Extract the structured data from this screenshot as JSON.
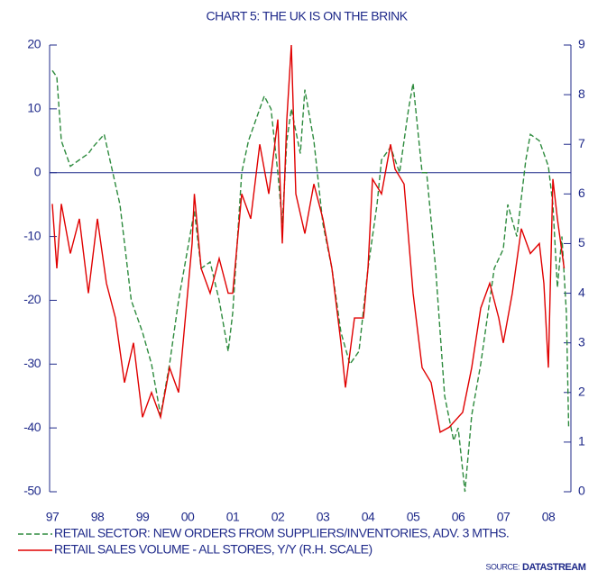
{
  "chart_data": {
    "type": "line",
    "title": "CHART 5: THE UK IS ON THE BRINK",
    "source_label": "SOURCE:",
    "source": "DATASTREAM",
    "xlim": [
      1996.94,
      2008.5
    ],
    "xticks": [
      {
        "value": 1997,
        "label": "97"
      },
      {
        "value": 1998,
        "label": "98"
      },
      {
        "value": 1999,
        "label": "99"
      },
      {
        "value": 2000,
        "label": "00"
      },
      {
        "value": 2001,
        "label": "01"
      },
      {
        "value": 2002,
        "label": "02"
      },
      {
        "value": 2003,
        "label": "03"
      },
      {
        "value": 2004,
        "label": "04"
      },
      {
        "value": 2005,
        "label": "05"
      },
      {
        "value": 2006,
        "label": "06"
      },
      {
        "value": 2007,
        "label": "07"
      },
      {
        "value": 2008,
        "label": "08"
      }
    ],
    "ylim": [
      -50,
      20
    ],
    "yticks": [
      -50,
      -40,
      -30,
      -20,
      -10,
      0,
      10,
      20
    ],
    "y2lim": [
      0,
      9
    ],
    "y2ticks": [
      0,
      1,
      2,
      3,
      4,
      5,
      6,
      7,
      8,
      9
    ],
    "zero_line": 0,
    "series": [
      {
        "name": "RETAIL SECTOR: NEW ORDERS FROM SUPPLIERS/INVENTORIES, ADV. 3 MTHS.",
        "color": "#2e8b3e",
        "dashed": true,
        "x": [
          1997.0,
          1997.1,
          1997.2,
          1997.4,
          1997.6,
          1997.8,
          1997.9,
          1998.15,
          1998.5,
          1998.75,
          1999.0,
          1999.2,
          1999.4,
          1999.6,
          1999.8,
          2000.0,
          2000.15,
          2000.3,
          2000.5,
          2000.7,
          2000.9,
          2001.0,
          2001.2,
          2001.35,
          2001.5,
          2001.7,
          2001.85,
          2002.0,
          2002.1,
          2002.2,
          2002.3,
          2002.5,
          2002.6,
          2002.8,
          2003.0,
          2003.2,
          2003.4,
          2003.6,
          2003.8,
          2004.0,
          2004.2,
          2004.3,
          2004.5,
          2004.7,
          2004.9,
          2005.0,
          2005.2,
          2005.3,
          2005.5,
          2005.7,
          2005.9,
          2006.0,
          2006.15,
          2006.3,
          2006.5,
          2006.6,
          2006.8,
          2007.0,
          2007.1,
          2007.3,
          2007.5,
          2007.6,
          2007.8,
          2008.0,
          2008.1,
          2008.2,
          2008.3,
          2008.4,
          2008.45
        ],
        "values": [
          16,
          15,
          5,
          1,
          2,
          3,
          4,
          6,
          -5,
          -20,
          -25,
          -30,
          -38,
          -30,
          -20,
          -12,
          -6,
          -15,
          -14,
          -20,
          -28,
          -22,
          0,
          5,
          8,
          12,
          10,
          0,
          -8,
          5,
          10,
          3,
          13,
          5,
          -8,
          -15,
          -25,
          -30,
          -28,
          -15,
          -5,
          2,
          4,
          0,
          10,
          14,
          0,
          0,
          -15,
          -35,
          -42,
          -40,
          -50,
          -38,
          -30,
          -25,
          -15,
          -12,
          -5,
          -10,
          2,
          6,
          5,
          1,
          -5,
          -18,
          -10,
          -22,
          -40
        ]
      },
      {
        "name": "RETAIL SALES VOLUME - ALL STORES, Y/Y (R.H. SCALE)",
        "color": "#e00000",
        "axis": "y2",
        "x": [
          1997.0,
          1997.1,
          1997.2,
          1997.4,
          1997.6,
          1997.8,
          1998.0,
          1998.2,
          1998.4,
          1998.6,
          1998.8,
          1999.0,
          1999.2,
          1999.4,
          1999.6,
          1999.8,
          2000.0,
          2000.1,
          2000.15,
          2000.3,
          2000.5,
          2000.7,
          2000.9,
          2001.0,
          2001.2,
          2001.4,
          2001.6,
          2001.8,
          2002.0,
          2002.1,
          2002.2,
          2002.3,
          2002.4,
          2002.6,
          2002.8,
          2003.0,
          2003.2,
          2003.4,
          2003.5,
          2003.7,
          2003.9,
          2004.0,
          2004.1,
          2004.3,
          2004.5,
          2004.6,
          2004.8,
          2005.0,
          2005.2,
          2005.4,
          2005.6,
          2005.8,
          2006.0,
          2006.1,
          2006.3,
          2006.5,
          2006.7,
          2006.9,
          2007.0,
          2007.2,
          2007.4,
          2007.6,
          2007.8,
          2007.9,
          2008.0,
          2008.1,
          2008.2,
          2008.35
        ],
        "values": [
          5.8,
          4.5,
          5.8,
          4.8,
          5.5,
          4.0,
          5.5,
          4.2,
          3.5,
          2.2,
          3.0,
          1.5,
          2.0,
          1.5,
          2.5,
          2.0,
          4.0,
          5.0,
          6.0,
          4.5,
          4.0,
          4.7,
          4.0,
          4.0,
          6.0,
          5.5,
          7.0,
          6.0,
          7.5,
          5.0,
          7.5,
          9.0,
          6.0,
          5.2,
          6.2,
          5.5,
          4.5,
          3.0,
          2.1,
          3.5,
          3.5,
          4.5,
          6.3,
          6.0,
          7.0,
          6.5,
          6.2,
          4.0,
          2.5,
          2.2,
          1.2,
          1.3,
          1.5,
          1.6,
          2.5,
          3.7,
          4.2,
          3.5,
          3.0,
          4.0,
          5.3,
          4.8,
          5.0,
          4.2,
          2.5,
          6.3,
          5.5,
          4.5
        ]
      }
    ]
  }
}
